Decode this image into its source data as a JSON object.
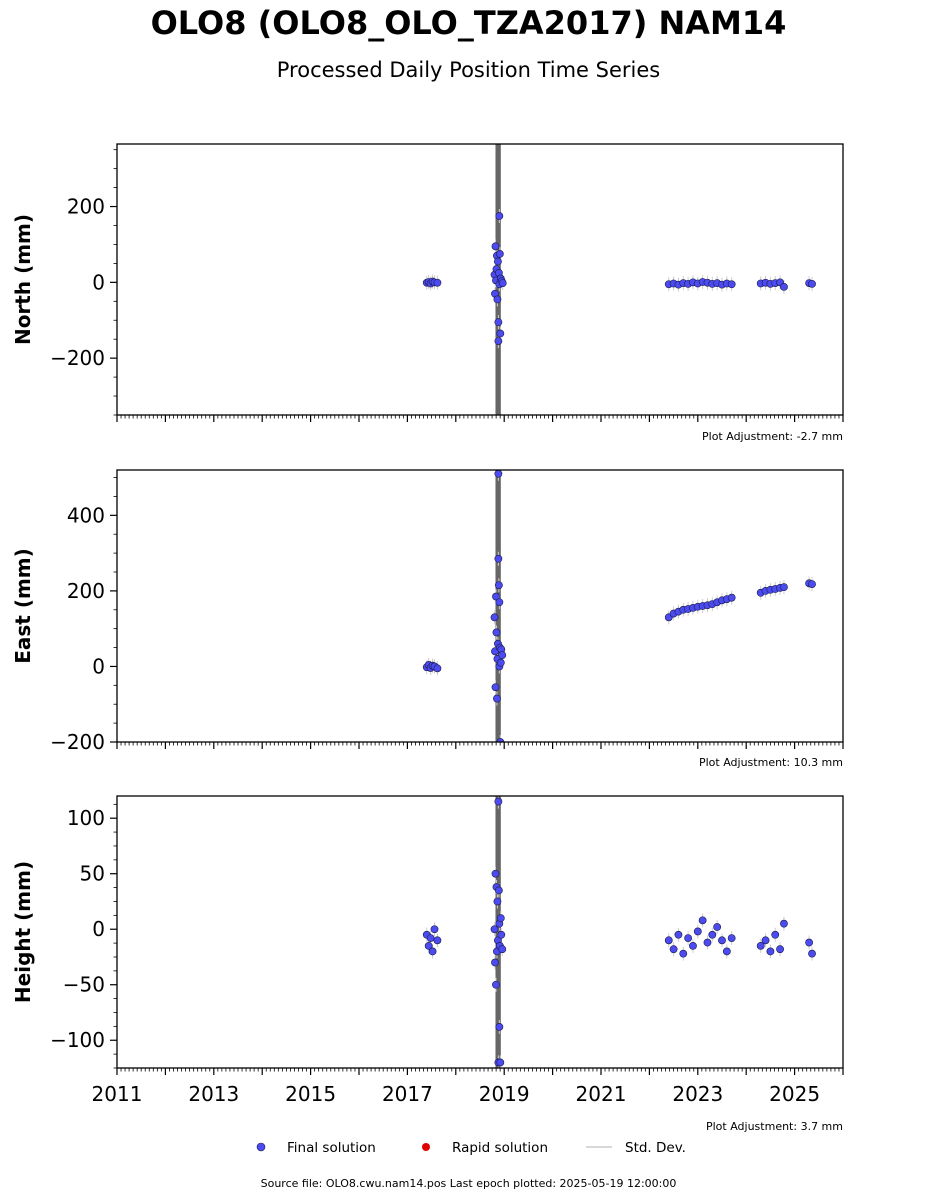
{
  "header": {
    "title": "OLO8 (OLO8_OLO_TZA2017) NAM14",
    "subtitle": "Processed Daily Position Time Series"
  },
  "legend": {
    "items": [
      {
        "label": "Final solution",
        "color": "#4b4bf0"
      },
      {
        "label": "Rapid solution",
        "color": "#e00000"
      },
      {
        "label": "Std. Dev.",
        "color": "#cccccc"
      }
    ]
  },
  "footer": {
    "source_text": "Source file: OLO8.cwu.nam14.pos  Last epoch plotted: 2025-05-19 12:00:00"
  },
  "colors": {
    "point_fill": "#4b4bf0",
    "point_edge": "#1a1a4a",
    "gap_bar": "#666666",
    "std_dev": "#cccccc"
  },
  "chart_data": [
    {
      "type": "scatter",
      "ylabel": "North (mm)",
      "xlim": [
        2011,
        2026
      ],
      "ylim": [
        -350,
        365
      ],
      "yticks": [
        -200,
        0,
        200
      ],
      "yticklabels": [
        "−200",
        "0",
        "200"
      ],
      "xticks": [
        2011,
        2013,
        2015,
        2017,
        2019,
        2021,
        2023,
        2025
      ],
      "xticklabels": [],
      "adjustment": "Plot Adjustment: -2.7 mm",
      "gap_band": [
        2018.82,
        2018.93
      ],
      "series": [
        {
          "values": [
            [
              2017.4,
              -1
            ],
            [
              2017.44,
              1
            ],
            [
              2017.48,
              -3
            ],
            [
              2017.52,
              2
            ],
            [
              2017.56,
              0
            ],
            [
              2017.62,
              -1
            ],
            [
              2018.8,
              20
            ],
            [
              2018.81,
              -30
            ],
            [
              2018.82,
              95
            ],
            [
              2018.83,
              5
            ],
            [
              2018.84,
              35
            ],
            [
              2018.85,
              70
            ],
            [
              2018.86,
              -45
            ],
            [
              2018.87,
              55
            ],
            [
              2018.88,
              -105
            ],
            [
              2018.88,
              -155
            ],
            [
              2018.89,
              25
            ],
            [
              2018.9,
              175
            ],
            [
              2018.9,
              -5
            ],
            [
              2018.91,
              75
            ],
            [
              2018.92,
              -135
            ],
            [
              2018.93,
              10
            ],
            [
              2018.95,
              3
            ],
            [
              2018.97,
              -2
            ],
            [
              2022.4,
              -5
            ],
            [
              2022.5,
              -3
            ],
            [
              2022.6,
              -6
            ],
            [
              2022.7,
              -2
            ],
            [
              2022.8,
              -4
            ],
            [
              2022.9,
              0
            ],
            [
              2023.0,
              -3
            ],
            [
              2023.1,
              1
            ],
            [
              2023.2,
              -1
            ],
            [
              2023.3,
              -4
            ],
            [
              2023.4,
              -2
            ],
            [
              2023.5,
              -6
            ],
            [
              2023.6,
              -3
            ],
            [
              2023.7,
              -5
            ],
            [
              2024.3,
              -3
            ],
            [
              2024.4,
              -1
            ],
            [
              2024.5,
              -4
            ],
            [
              2024.6,
              -2
            ],
            [
              2024.7,
              0
            ],
            [
              2024.78,
              -12
            ],
            [
              2025.3,
              -2
            ],
            [
              2025.36,
              -4
            ]
          ]
        }
      ]
    },
    {
      "type": "scatter",
      "ylabel": "East (mm)",
      "xlim": [
        2011,
        2026
      ],
      "ylim": [
        -200,
        520
      ],
      "yticks": [
        -200,
        0,
        200,
        400
      ],
      "yticklabels": [
        "−200",
        "0",
        "200",
        "400"
      ],
      "xticks": [
        2011,
        2013,
        2015,
        2017,
        2019,
        2021,
        2023,
        2025
      ],
      "xticklabels": [],
      "adjustment": "Plot Adjustment: 10.3 mm",
      "gap_band": [
        2018.82,
        2018.93
      ],
      "series": [
        {
          "values": [
            [
              2017.4,
              -2
            ],
            [
              2017.44,
              4
            ],
            [
              2017.48,
              -4
            ],
            [
              2017.52,
              2
            ],
            [
              2017.56,
              0
            ],
            [
              2017.62,
              -5
            ],
            [
              2018.8,
              130
            ],
            [
              2018.81,
              40
            ],
            [
              2018.82,
              -55
            ],
            [
              2018.83,
              185
            ],
            [
              2018.84,
              90
            ],
            [
              2018.85,
              -85
            ],
            [
              2018.86,
              20
            ],
            [
              2018.87,
              60
            ],
            [
              2018.88,
              285
            ],
            [
              2018.88,
              510
            ],
            [
              2018.89,
              215
            ],
            [
              2018.9,
              0
            ],
            [
              2018.9,
              170
            ],
            [
              2018.91,
              50
            ],
            [
              2018.92,
              -200
            ],
            [
              2018.93,
              10
            ],
            [
              2018.94,
              45
            ],
            [
              2018.96,
              30
            ],
            [
              2022.4,
              130
            ],
            [
              2022.5,
              140
            ],
            [
              2022.6,
              145
            ],
            [
              2022.7,
              150
            ],
            [
              2022.8,
              152
            ],
            [
              2022.9,
              155
            ],
            [
              2023.0,
              158
            ],
            [
              2023.1,
              160
            ],
            [
              2023.2,
              162
            ],
            [
              2023.3,
              165
            ],
            [
              2023.4,
              170
            ],
            [
              2023.5,
              175
            ],
            [
              2023.6,
              178
            ],
            [
              2023.7,
              182
            ],
            [
              2024.3,
              195
            ],
            [
              2024.4,
              200
            ],
            [
              2024.5,
              203
            ],
            [
              2024.6,
              205
            ],
            [
              2024.7,
              208
            ],
            [
              2024.78,
              210
            ],
            [
              2025.3,
              220
            ],
            [
              2025.36,
              218
            ]
          ]
        }
      ]
    },
    {
      "type": "scatter",
      "ylabel": "Height (mm)",
      "xlim": [
        2011,
        2026
      ],
      "ylim": [
        -125,
        120
      ],
      "yticks": [
        -100,
        -50,
        0,
        50,
        100
      ],
      "yticklabels": [
        "−100",
        "−50",
        "0",
        "50",
        "100"
      ],
      "xticks": [
        2011,
        2013,
        2015,
        2017,
        2019,
        2021,
        2023,
        2025
      ],
      "xticklabels": [
        "2011",
        "2013",
        "2015",
        "2017",
        "2019",
        "2021",
        "2023",
        "2025"
      ],
      "adjustment": "Plot Adjustment: 3.7 mm",
      "gap_band": [
        2018.82,
        2018.93
      ],
      "series": [
        {
          "values": [
            [
              2017.4,
              -5
            ],
            [
              2017.44,
              -15
            ],
            [
              2017.48,
              -8
            ],
            [
              2017.52,
              -20
            ],
            [
              2017.56,
              0
            ],
            [
              2017.62,
              -10
            ],
            [
              2018.8,
              0
            ],
            [
              2018.81,
              -30
            ],
            [
              2018.82,
              50
            ],
            [
              2018.83,
              -50
            ],
            [
              2018.84,
              38
            ],
            [
              2018.85,
              -20
            ],
            [
              2018.86,
              25
            ],
            [
              2018.87,
              -10
            ],
            [
              2018.88,
              -120
            ],
            [
              2018.88,
              115
            ],
            [
              2018.89,
              35
            ],
            [
              2018.9,
              -88
            ],
            [
              2018.9,
              5
            ],
            [
              2018.91,
              -15
            ],
            [
              2018.92,
              -120
            ],
            [
              2018.93,
              10
            ],
            [
              2018.94,
              -5
            ],
            [
              2018.96,
              -18
            ],
            [
              2022.4,
              -10
            ],
            [
              2022.5,
              -18
            ],
            [
              2022.6,
              -5
            ],
            [
              2022.7,
              -22
            ],
            [
              2022.8,
              -8
            ],
            [
              2022.9,
              -15
            ],
            [
              2023.0,
              -2
            ],
            [
              2023.1,
              8
            ],
            [
              2023.2,
              -12
            ],
            [
              2023.3,
              -5
            ],
            [
              2023.4,
              2
            ],
            [
              2023.5,
              -10
            ],
            [
              2023.6,
              -20
            ],
            [
              2023.7,
              -8
            ],
            [
              2024.3,
              -15
            ],
            [
              2024.4,
              -10
            ],
            [
              2024.5,
              -20
            ],
            [
              2024.6,
              -5
            ],
            [
              2024.7,
              -18
            ],
            [
              2024.78,
              5
            ],
            [
              2025.3,
              -12
            ],
            [
              2025.36,
              -22
            ]
          ]
        }
      ]
    }
  ]
}
